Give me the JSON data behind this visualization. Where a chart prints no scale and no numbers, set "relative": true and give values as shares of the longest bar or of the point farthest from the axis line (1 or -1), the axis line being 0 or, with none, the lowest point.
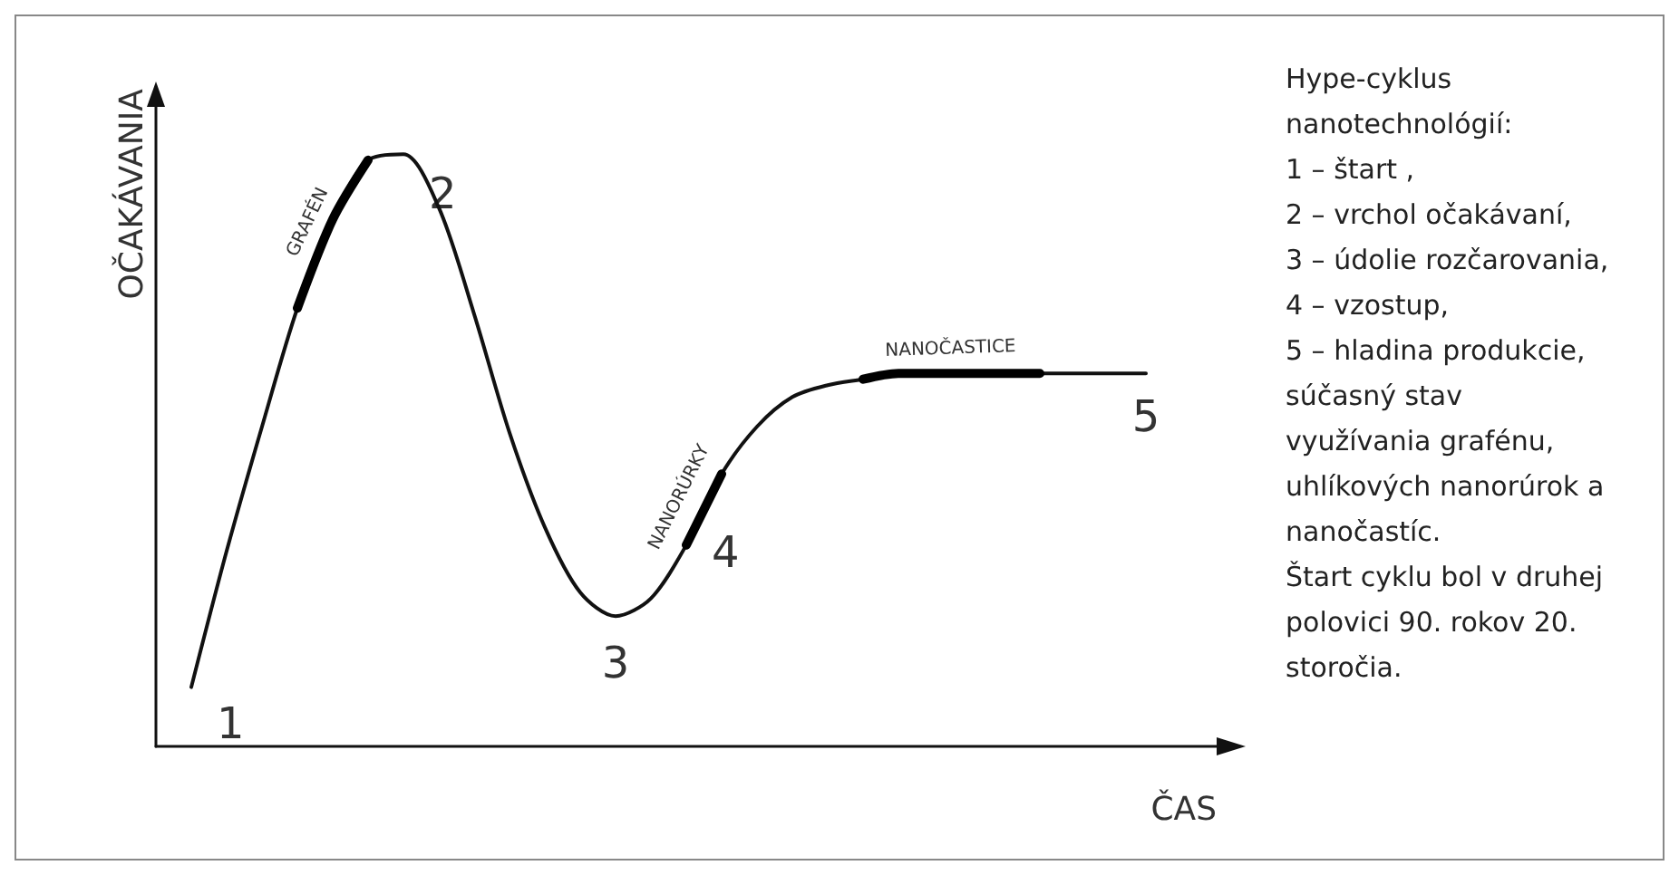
{
  "chart_data": {
    "type": "line",
    "relative": true,
    "xlabel": "ČAS",
    "ylabel": "OČAKÁVANIA",
    "categories": [
      null,
      null,
      null,
      null,
      null,
      null,
      null,
      null,
      null,
      null,
      null,
      null,
      null,
      null,
      null,
      null,
      null,
      null,
      null,
      null,
      null,
      null,
      null,
      null,
      null,
      null,
      null,
      null,
      null,
      null,
      null
    ],
    "series": [
      {
        "color": "#111111",
        "values": [
          null,
          0.1,
          0.33,
          0.54,
          0.74,
          0.89,
          0.99,
          1,
          0.91,
          0.73,
          0.53,
          0.37,
          0.26,
          0.22,
          0.25,
          0.34,
          0.46,
          0.54,
          0.59,
          0.61,
          0.62,
          0.63,
          0.63,
          0.63,
          0.63,
          0.63,
          0.63,
          0.63,
          0.63,
          null,
          null
        ]
      },
      {
        "name": "GRAFÉN",
        "color": "#000000",
        "values": [
          null,
          null,
          null,
          null,
          0.74,
          0.89,
          0.99,
          null,
          null,
          null,
          null,
          null,
          null,
          null,
          null,
          null,
          null,
          null,
          null,
          null,
          null,
          null,
          null,
          null,
          null,
          null,
          null,
          null,
          null,
          null,
          null
        ]
      },
      {
        "name": "NANORÚRKY",
        "color": "#000000",
        "values": [
          null,
          null,
          null,
          null,
          null,
          null,
          null,
          null,
          null,
          null,
          null,
          null,
          null,
          null,
          null,
          0.34,
          0.46,
          null,
          null,
          null,
          null,
          null,
          null,
          null,
          null,
          null,
          null,
          null,
          null,
          null,
          null
        ]
      },
      {
        "name": "NANOČASTICE",
        "color": "#000000",
        "values": [
          null,
          null,
          null,
          null,
          null,
          null,
          null,
          null,
          null,
          null,
          null,
          null,
          null,
          null,
          null,
          null,
          null,
          null,
          null,
          null,
          0.62,
          0.63,
          0.63,
          0.63,
          0.63,
          0.63,
          null,
          null,
          null,
          null,
          null
        ]
      }
    ],
    "annotations": [
      "1",
      "2",
      "3",
      "4",
      "5",
      "Hype-cyklus nanotechnológií:",
      "1 – štart ,",
      "2 – vrchol očakávaní,",
      "3 – údolie rozčarovania,",
      "4 – vzostup,",
      "5 – hladina produkcie,",
      "súčasný stav využívania grafénu, uhlíkových nanorúrok a nanočastíc.",
      "Štart cyklu bol v druhej polovici 90. rokov 20. storočia."
    ]
  }
}
